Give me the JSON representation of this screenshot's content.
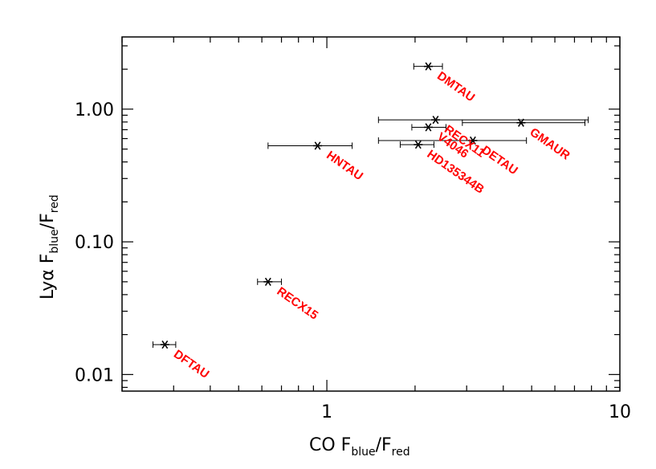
{
  "chart_data": {
    "type": "scatter",
    "title": "",
    "x_scale": "log",
    "y_scale": "log",
    "xlim": [
      0.2,
      10
    ],
    "ylim": [
      0.0075,
      3.5
    ],
    "xlabel": {
      "main": "CO  F",
      "sub1": "blue",
      "sep": "/F",
      "sub2": "red"
    },
    "ylabel": {
      "main": "Lyα  F",
      "sub1": "blue",
      "sep": "/F",
      "sub2": "red"
    },
    "x_ticks": [
      {
        "value": 1,
        "label": "1"
      },
      {
        "value": 10,
        "label": "10"
      }
    ],
    "y_ticks": [
      {
        "value": 0.01,
        "label": "0.01"
      },
      {
        "value": 0.1,
        "label": "0.10"
      },
      {
        "value": 1,
        "label": "1.00"
      }
    ],
    "grid": false,
    "label_color": "#ff0000",
    "marker": "asterisk",
    "points": [
      {
        "label": "DMTAU",
        "x": 2.22,
        "y": 2.1,
        "xerr": [
          1.98,
          2.48
        ]
      },
      {
        "label": "V4046",
        "x": 2.22,
        "y": 0.73,
        "xerr": [
          1.95,
          2.55
        ]
      },
      {
        "label": "DETAU",
        "x": 3.15,
        "y": 0.58,
        "xerr": [
          1.5,
          4.8
        ]
      },
      {
        "label": "RECX11",
        "x": 2.35,
        "y": 0.83,
        "xerr": [
          1.5,
          7.8
        ]
      },
      {
        "label": "GMAUR",
        "x": 4.6,
        "y": 0.79,
        "xerr": [
          2.9,
          7.6
        ]
      },
      {
        "label": "HD135344B",
        "x": 2.05,
        "y": 0.54,
        "xerr": [
          1.78,
          2.32
        ]
      },
      {
        "label": "HNTAU",
        "x": 0.93,
        "y": 0.53,
        "xerr": [
          0.63,
          1.22
        ]
      },
      {
        "label": "RECX15",
        "x": 0.63,
        "y": 0.05,
        "xerr": [
          0.58,
          0.7
        ]
      },
      {
        "label": "DFTAU",
        "x": 0.28,
        "y": 0.0168,
        "xerr": [
          0.255,
          0.305
        ]
      }
    ]
  }
}
